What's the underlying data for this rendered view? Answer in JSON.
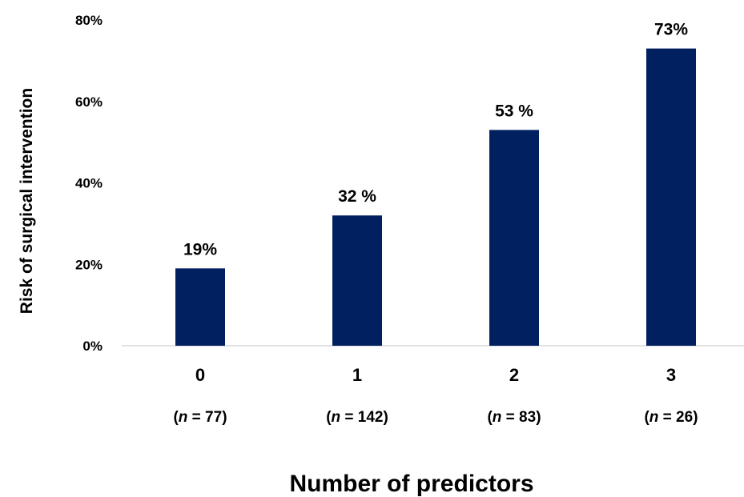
{
  "chart_data": {
    "type": "bar",
    "categories": [
      "0",
      "1",
      "2",
      "3"
    ],
    "sample_sizes": [
      {
        "prefix": "(",
        "n": "n",
        "eq": " = 77)"
      },
      {
        "prefix": "(",
        "n": "n",
        "eq": " = 142)"
      },
      {
        "prefix": "(",
        "n": "n",
        "eq": " = 83)"
      },
      {
        "prefix": "(",
        "n": "n",
        "eq": " = 26)"
      }
    ],
    "values": [
      19,
      32,
      53,
      73
    ],
    "data_labels": [
      "19%",
      "32 %",
      "53 %",
      "73%"
    ],
    "yticks": [
      {
        "value": 0,
        "label": "0%"
      },
      {
        "value": 20,
        "label": "20%"
      },
      {
        "value": 40,
        "label": "40%"
      },
      {
        "value": 60,
        "label": "60%"
      },
      {
        "value": 80,
        "label": "80%"
      }
    ],
    "ylim": [
      0,
      80
    ],
    "xlabel": "Number of predictors",
    "ylabel": "Risk of surgical intervention",
    "bar_color": "#002060",
    "grid": false
  }
}
